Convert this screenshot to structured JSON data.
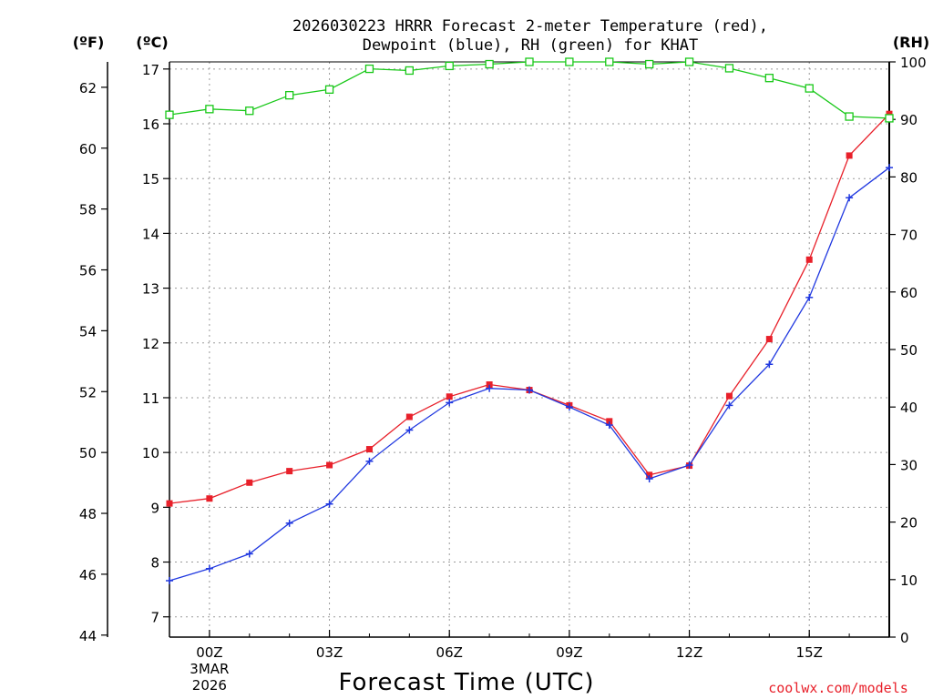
{
  "chart_data": {
    "type": "line",
    "title_line1": "2026030223 HRRR Forecast 2-meter Temperature (red),",
    "title_line2": "Dewpoint (blue), RH (green) for KHAT",
    "axis_headers": {
      "fahrenheit": "(ºF)",
      "celsius": "(ºC)",
      "rh": "(RH)"
    },
    "xlabel": "Forecast Time (UTC)",
    "credit": "coolwx.com/models",
    "x_hours": [
      -1,
      0,
      1,
      2,
      3,
      4,
      5,
      6,
      7,
      8,
      9,
      10,
      11,
      12,
      13,
      14,
      15,
      16,
      17
    ],
    "xlim": [
      -1,
      17
    ],
    "x_ticks": [
      {
        "hour": 0,
        "label": "00Z",
        "sub1": "3MAR",
        "sub2": "2026"
      },
      {
        "hour": 3,
        "label": "03Z",
        "sub1": "",
        "sub2": ""
      },
      {
        "hour": 6,
        "label": "06Z",
        "sub1": "",
        "sub2": ""
      },
      {
        "hour": 9,
        "label": "09Z",
        "sub1": "",
        "sub2": ""
      },
      {
        "hour": 12,
        "label": "12Z",
        "sub1": "",
        "sub2": ""
      },
      {
        "hour": 15,
        "label": "15Z",
        "sub1": "",
        "sub2": ""
      }
    ],
    "celsius_axis": {
      "ylim": [
        6.63,
        17.13
      ],
      "ticks": [
        7,
        8,
        9,
        10,
        11,
        12,
        13,
        14,
        15,
        16,
        17
      ]
    },
    "fahrenheit_ticks": [
      44,
      46,
      48,
      50,
      52,
      54,
      56,
      58,
      60,
      62
    ],
    "rh_axis": {
      "ylim": [
        0,
        100
      ],
      "ticks": [
        0,
        10,
        20,
        30,
        40,
        50,
        60,
        70,
        80,
        90,
        100
      ]
    },
    "series": [
      {
        "name": "Temperature",
        "axis": "celsius",
        "color": "#e8202a",
        "marker": "filled-square",
        "values": [
          9.07,
          9.16,
          9.45,
          9.66,
          9.77,
          10.06,
          10.65,
          11.02,
          11.24,
          11.14,
          10.86,
          10.57,
          9.59,
          9.76,
          11.03,
          12.07,
          13.52,
          15.42,
          16.18
        ]
      },
      {
        "name": "Dewpoint",
        "axis": "celsius",
        "color": "#2038e0",
        "marker": "plus",
        "values": [
          7.66,
          7.88,
          8.15,
          8.71,
          9.06,
          9.84,
          10.41,
          10.91,
          11.17,
          11.14,
          10.83,
          10.5,
          9.52,
          9.77,
          10.86,
          11.61,
          12.83,
          14.65,
          15.2
        ]
      },
      {
        "name": "RH",
        "axis": "rh",
        "color": "#18c818",
        "marker": "open-square",
        "values": [
          90.8,
          91.8,
          91.5,
          94.2,
          95.2,
          98.8,
          98.5,
          99.3,
          99.6,
          100,
          100,
          100,
          99.6,
          100,
          98.9,
          97.2,
          95.4,
          90.5,
          90.2
        ]
      }
    ],
    "grid": true
  }
}
